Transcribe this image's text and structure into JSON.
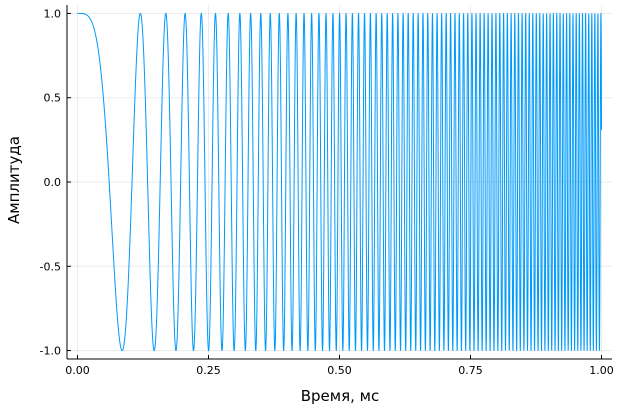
{
  "chart_data": {
    "type": "line",
    "title": "",
    "xlabel": "Время, мс",
    "ylabel": "Амплитуда",
    "xlim": [
      -0.02,
      1.02
    ],
    "ylim": [
      -1.05,
      1.05
    ],
    "xticks": [
      0.0,
      0.25,
      0.5,
      0.75,
      1.0
    ],
    "xtick_labels": [
      "0.00",
      "0.25",
      "0.50",
      "0.75",
      "1.00"
    ],
    "yticks": [
      -1.0,
      -0.5,
      0.0,
      0.5,
      1.0
    ],
    "ytick_labels": [
      "-1.0",
      "-0.5",
      "0.0",
      "0.5",
      "1.0"
    ],
    "grid": true,
    "legend": "none",
    "series": [
      {
        "color": "#009AFA",
        "function": "cos(2*pi*(5000*t^2 + 1000*t^3 - 500*t^4) for t = time in seconds * 1000 (ms); sampled t in [0, 1]",
        "x_range": [
          0.0,
          1.0
        ]
      }
    ]
  }
}
